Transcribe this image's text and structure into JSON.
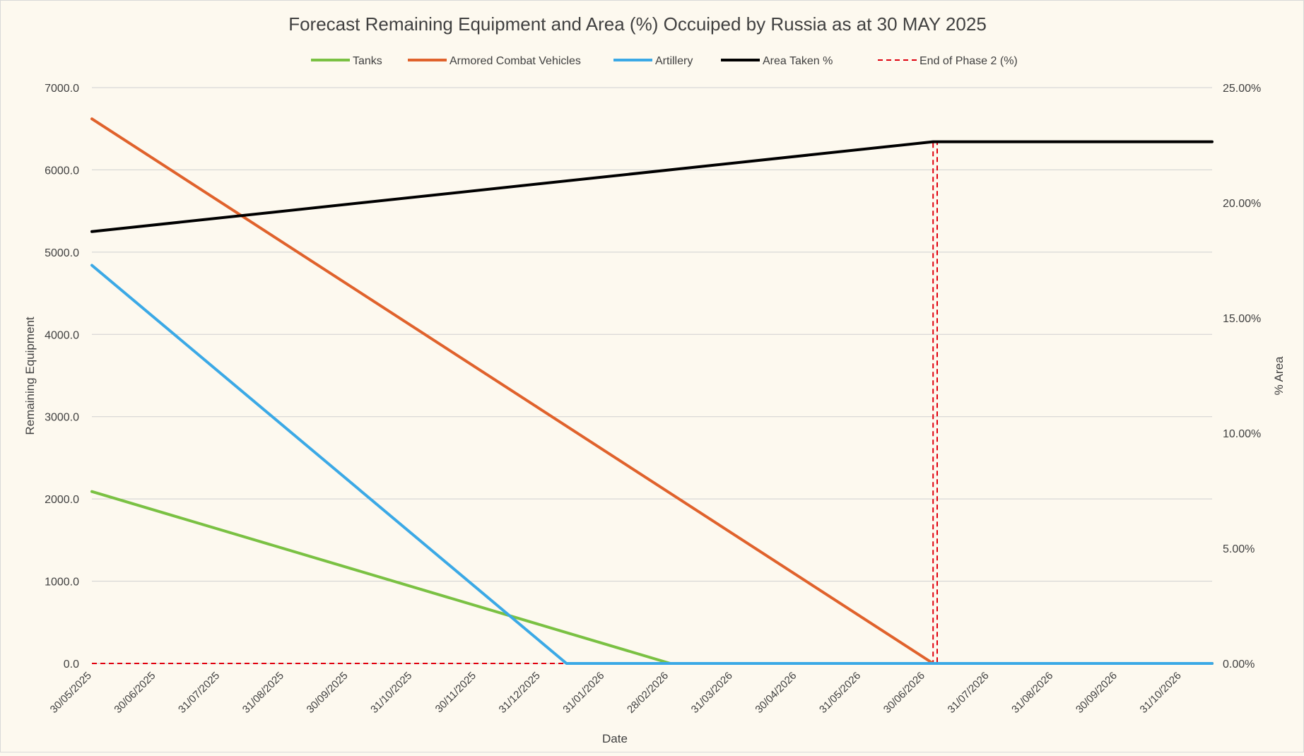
{
  "chart_data": {
    "type": "line",
    "title": "Forecast Remaining Equipment and Area (%) Occuiped by Russia as at 30 MAY 2025",
    "xlabel": "Date",
    "ylabel": "Remaining Equipment",
    "y2label": "% Area",
    "x_tick_labels": [
      "30/05/2025",
      "30/06/2025",
      "31/07/2025",
      "31/08/2025",
      "30/09/2025",
      "31/10/2025",
      "30/11/2025",
      "31/12/2025",
      "31/01/2026",
      "28/02/2026",
      "31/03/2026",
      "30/04/2026",
      "31/05/2026",
      "30/06/2026",
      "31/07/2026",
      "31/08/2026",
      "30/09/2026",
      "31/10/2026"
    ],
    "x_domain_days": [
      0,
      550
    ],
    "y_ticks": [
      "0.0",
      "1000.0",
      "2000.0",
      "3000.0",
      "4000.0",
      "5000.0",
      "6000.0",
      "7000.0"
    ],
    "ylim": [
      0,
      7000
    ],
    "y2_ticks": [
      "0.00%",
      "5.00%",
      "10.00%",
      "15.00%",
      "20.00%",
      "25.00%"
    ],
    "y2lim": [
      0,
      25
    ],
    "grid": true,
    "legend_position": "top",
    "series": [
      {
        "name": "Tanks",
        "axis": "left",
        "color": "#7ac143",
        "dash": false,
        "points": [
          [
            0,
            2090
          ],
          [
            284,
            0
          ],
          [
            550,
            0
          ]
        ]
      },
      {
        "name": "Armored Combat Vehicles",
        "axis": "left",
        "color": "#e0622c",
        "dash": false,
        "points": [
          [
            0,
            6620
          ],
          [
            413,
            0
          ],
          [
            550,
            0
          ]
        ]
      },
      {
        "name": "Artillery",
        "axis": "left",
        "color": "#3ba9e6",
        "dash": false,
        "points": [
          [
            0,
            4840
          ],
          [
            233,
            0
          ],
          [
            550,
            0
          ]
        ]
      },
      {
        "name": "Area Taken %",
        "axis": "right",
        "color": "#000000",
        "dash": false,
        "points": [
          [
            0,
            18.75
          ],
          [
            413,
            22.65
          ],
          [
            550,
            22.65
          ]
        ]
      },
      {
        "name": "End of Phase 2 (%)",
        "axis": "right",
        "color": "#e0000e",
        "dash": true,
        "points": [
          [
            0,
            0
          ],
          [
            413,
            0
          ],
          [
            413,
            22.65
          ],
          [
            415,
            22.65
          ],
          [
            415,
            0
          ]
        ]
      }
    ]
  }
}
